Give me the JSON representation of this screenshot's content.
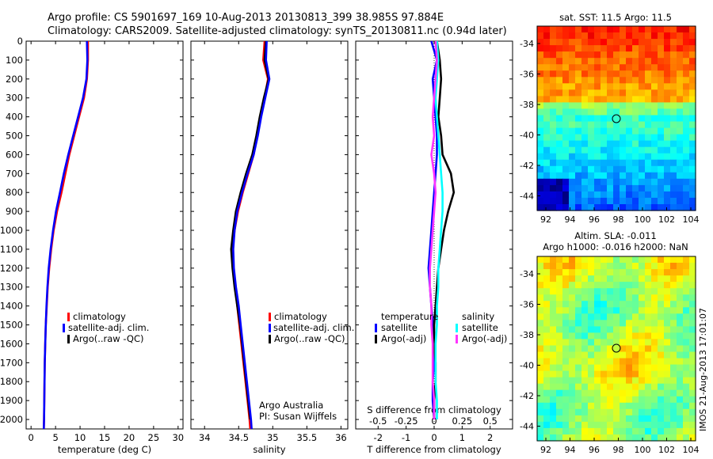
{
  "header": {
    "line1": "Argo profile: CS 5901697_169 10-Aug-2013 20130813_399 38.985S 97.884E",
    "line2": "Climatology: CARS2009. Satellite-adjusted climatology: synTS_20130811.nc (0.94d later)"
  },
  "side_label": "IMOS 21-Aug-2013 17:01:07",
  "colors": {
    "red": "#ff0000",
    "blue": "#0000ff",
    "black": "#000000",
    "cyan": "#00ffff",
    "magenta": "#ff33ff"
  },
  "chart_data": [
    {
      "type": "line",
      "xlabel": "temperature (deg C)",
      "ylabel": "",
      "xlim": [
        -1,
        31
      ],
      "ylim": [
        2050,
        0
      ],
      "xticks": [
        "0",
        "5",
        "10",
        "15",
        "20",
        "25",
        "30"
      ],
      "xtick_values": [
        0,
        5,
        10,
        15,
        20,
        25,
        30
      ],
      "yticks": [
        "0",
        "100",
        "200",
        "300",
        "400",
        "500",
        "600",
        "700",
        "800",
        "900",
        "1000",
        "1100",
        "1200",
        "1300",
        "1400",
        "1500",
        "1600",
        "1700",
        "1800",
        "1900",
        "2000"
      ],
      "ytick_values": [
        0,
        100,
        200,
        300,
        400,
        500,
        600,
        700,
        800,
        900,
        1000,
        1100,
        1200,
        1300,
        1400,
        1500,
        1600,
        1700,
        1800,
        1900,
        2000
      ],
      "legend": [
        "climatology",
        "satellite-adj. clim.",
        "Argo(..raw -QC)"
      ],
      "series": [
        {
          "name": "climatology",
          "color": "#ff0000",
          "x": [
            11.6,
            11.6,
            11.4,
            10.8,
            9.8,
            8.8,
            7.8,
            7.0,
            6.2,
            5.3,
            4.6,
            4.1,
            3.7,
            3.4,
            3.2,
            3.0,
            2.9,
            2.8,
            2.75,
            2.7,
            2.65,
            2.6
          ],
          "y": [
            0,
            100,
            200,
            300,
            400,
            500,
            600,
            700,
            800,
            900,
            1000,
            1100,
            1200,
            1300,
            1400,
            1500,
            1600,
            1700,
            1800,
            1900,
            2000,
            2050
          ]
        },
        {
          "name": "satellite-adj. clim.",
          "color": "#0000ff",
          "x": [
            11.4,
            11.5,
            11.3,
            10.6,
            9.6,
            8.6,
            7.6,
            6.7,
            5.9,
            5.1,
            4.5,
            4.0,
            3.6,
            3.35,
            3.15,
            3.0,
            2.9,
            2.8,
            2.75,
            2.7,
            2.65,
            2.6
          ],
          "y": [
            0,
            100,
            200,
            300,
            400,
            500,
            600,
            700,
            800,
            900,
            1000,
            1100,
            1200,
            1300,
            1400,
            1500,
            1600,
            1700,
            1800,
            1900,
            2000,
            2050
          ]
        }
      ]
    },
    {
      "type": "line",
      "xlabel": "salinity",
      "ylabel": "",
      "xlim": [
        33.8,
        36.1
      ],
      "ylim": [
        2050,
        0
      ],
      "xticks": [
        "34",
        "34.5",
        "35",
        "35.5",
        "36"
      ],
      "xtick_values": [
        34,
        34.5,
        35,
        35.5,
        36
      ],
      "legend": [
        "climatology",
        "satellite-adj. clim.",
        "Argo(..raw -QC)"
      ],
      "annotation": [
        "Argo Australia",
        "PI: Susan Wijffels"
      ],
      "series": [
        {
          "name": "climatology",
          "color": "#ff0000",
          "x": [
            34.88,
            34.86,
            34.93,
            34.88,
            34.82,
            34.77,
            34.72,
            34.64,
            34.56,
            34.49,
            34.44,
            34.41,
            34.42,
            34.45,
            34.48,
            34.51,
            34.54,
            34.57,
            34.6,
            34.63,
            34.66,
            34.67
          ],
          "y": [
            0,
            100,
            200,
            300,
            400,
            500,
            600,
            700,
            800,
            900,
            1000,
            1100,
            1200,
            1300,
            1400,
            1500,
            1600,
            1700,
            1800,
            1900,
            2000,
            2050
          ]
        },
        {
          "name": "Argo(..raw -QC)",
          "color": "#000000",
          "x": [
            34.9,
            34.88,
            34.94,
            34.87,
            34.81,
            34.76,
            34.7,
            34.61,
            34.53,
            34.46,
            34.42,
            34.39,
            34.41,
            34.44,
            34.48,
            34.52,
            34.55,
            34.58,
            34.61,
            34.64,
            34.67
          ],
          "y": [
            0,
            100,
            200,
            300,
            400,
            500,
            600,
            700,
            800,
            900,
            1000,
            1100,
            1200,
            1300,
            1400,
            1500,
            1600,
            1700,
            1800,
            1900,
            2000
          ]
        },
        {
          "name": "satellite-adj. clim.",
          "color": "#0000ff",
          "x": [
            34.91,
            34.9,
            34.95,
            34.89,
            34.83,
            34.78,
            34.72,
            34.63,
            34.55,
            34.48,
            34.44,
            34.42,
            34.43,
            34.46,
            34.5,
            34.53,
            34.56,
            34.59,
            34.62,
            34.65,
            34.68,
            34.69
          ],
          "y": [
            0,
            100,
            200,
            300,
            400,
            500,
            600,
            700,
            800,
            900,
            1000,
            1100,
            1200,
            1300,
            1400,
            1500,
            1600,
            1700,
            1800,
            1900,
            2000,
            2050
          ]
        }
      ]
    },
    {
      "type": "line",
      "xlabel": "T difference from climatology",
      "xlabel2": "S difference from climatology",
      "xlim": [
        -2.8,
        2.8
      ],
      "ylim": [
        2050,
        0
      ],
      "xticks": [
        "-2",
        "-1",
        "0",
        "1",
        "2"
      ],
      "xtick_values": [
        -2,
        -1,
        0,
        1,
        2
      ],
      "xticks_top": [
        "-0.5",
        "-0.25",
        "0",
        "0.25",
        "0.5"
      ],
      "xtick_top_values": [
        -2,
        -1,
        0,
        1,
        2
      ],
      "legend_groups": {
        "temperature": [
          "satellite",
          "Argo(-adj)"
        ],
        "salinity": [
          "satellite",
          "Argo(-adj)"
        ]
      },
      "legend_group_titles": [
        "temperature",
        "salinity"
      ],
      "legend_temp": [
        "satellite",
        "Argo(-adj)"
      ],
      "legend_sal": [
        "satellite",
        "Argo(-adj)"
      ],
      "series": [
        {
          "name": "T satellite",
          "color": "#0000ff",
          "x": [
            -0.1,
            0.1,
            -0.05,
            0.0,
            0.05,
            0.1,
            0.1,
            0.05,
            0.0,
            -0.05,
            -0.1,
            -0.15,
            -0.2,
            -0.15,
            -0.1,
            -0.05,
            0.0,
            0.0,
            -0.05,
            -0.05,
            0.0
          ],
          "y": [
            0,
            100,
            200,
            300,
            400,
            500,
            600,
            700,
            800,
            900,
            1000,
            1100,
            1200,
            1300,
            1400,
            1500,
            1600,
            1700,
            1800,
            1900,
            2000
          ]
        },
        {
          "name": "T Argo(-adj)",
          "color": "#000000",
          "x": [
            0.1,
            0.2,
            0.25,
            0.2,
            0.15,
            0.25,
            0.3,
            0.6,
            0.7,
            0.5,
            0.35,
            0.25,
            0.15,
            0.1,
            0.05,
            0.0,
            0.0,
            0.05,
            0.05,
            0.0,
            0.0
          ],
          "y": [
            0,
            100,
            200,
            300,
            400,
            500,
            600,
            700,
            800,
            900,
            1000,
            1100,
            1200,
            1300,
            1400,
            1500,
            1600,
            1700,
            1800,
            1900,
            2000
          ]
        },
        {
          "name": "S satellite",
          "color": "#00ffff",
          "x": [
            0.1,
            0.15,
            0.1,
            0.05,
            0.1,
            0.15,
            0.2,
            0.25,
            0.3,
            0.3,
            0.25,
            0.2,
            0.15,
            0.15,
            0.1,
            0.1,
            0.05,
            0.05,
            0.05,
            0.1,
            0.1
          ],
          "y": [
            0,
            100,
            200,
            300,
            400,
            500,
            600,
            700,
            800,
            900,
            1000,
            1100,
            1200,
            1300,
            1400,
            1500,
            1600,
            1700,
            1800,
            1900,
            2000
          ]
        },
        {
          "name": "S Argo(-adj)",
          "color": "#ff33ff",
          "x": [
            0.05,
            0.1,
            0.05,
            0.0,
            -0.05,
            0.0,
            -0.1,
            0.0,
            0.05,
            0.0,
            -0.05,
            -0.1,
            -0.15,
            -0.15,
            -0.1,
            -0.1,
            -0.05,
            -0.05,
            -0.05,
            0.0,
            0.0
          ],
          "y": [
            0,
            100,
            200,
            300,
            400,
            500,
            600,
            700,
            800,
            900,
            1000,
            1100,
            1200,
            1300,
            1400,
            1500,
            1600,
            1700,
            1800,
            1900,
            2000
          ]
        }
      ]
    }
  ],
  "maps": {
    "sst": {
      "title": "sat. SST: 11.5 Argo: 11.5",
      "yticks": [
        "-34",
        "-36",
        "-38",
        "-40",
        "-42",
        "-44"
      ],
      "xticks": [
        "92",
        "94",
        "96",
        "98",
        "100",
        "102",
        "104"
      ]
    },
    "sla": {
      "title1": "Altim. SLA: -0.011",
      "title2": "Argo h1000: -0.016 h2000: NaN",
      "yticks": [
        "-34",
        "-36",
        "-38",
        "-40",
        "-42",
        "-44"
      ],
      "xticks": [
        "92",
        "94",
        "96",
        "98",
        "100",
        "102",
        "104"
      ]
    }
  }
}
